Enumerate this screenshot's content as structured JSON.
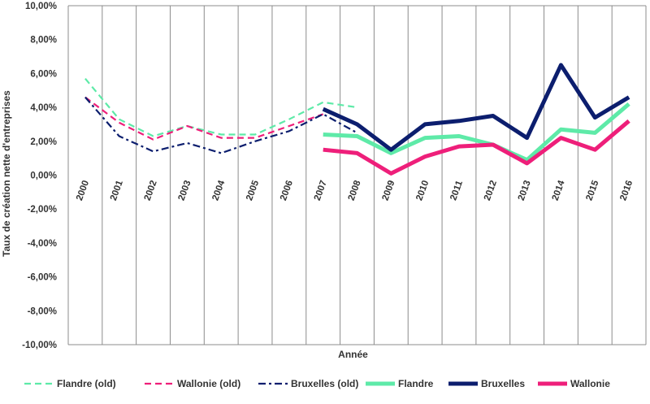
{
  "chart_data": {
    "type": "line",
    "xlabel": "Année",
    "ylabel": "Taux de création nette d'entreprises",
    "ylim": [
      -10,
      10
    ],
    "yticks": [
      "10,00%",
      "8,00%",
      "6,00%",
      "4,00%",
      "2,00%",
      "0,00%",
      "-2,00%",
      "-4,00%",
      "-6,00%",
      "-8,00%",
      "-10,00%"
    ],
    "categories": [
      "2000",
      "2001",
      "2002",
      "2003",
      "2004",
      "2005",
      "2006",
      "2007",
      "2008",
      "2009",
      "2010",
      "2011",
      "2012",
      "2013",
      "2014",
      "2015",
      "2016"
    ],
    "grid": "vertical",
    "legend_position": "bottom",
    "series": [
      {
        "name": "Flandre (old)",
        "color": "#5eeaa8",
        "style": "dashed",
        "width": "thin",
        "values": [
          5.7,
          3.3,
          2.3,
          2.9,
          2.4,
          2.4,
          3.3,
          4.3,
          4.0,
          null,
          null,
          null,
          null,
          null,
          null,
          null,
          null
        ]
      },
      {
        "name": "Wallonie (old)",
        "color": "#ee1f7a",
        "style": "dashed",
        "width": "thin",
        "values": [
          4.6,
          3.1,
          2.1,
          2.9,
          2.2,
          2.2,
          2.9,
          3.6,
          null,
          null,
          null,
          null,
          null,
          null,
          null,
          null,
          null
        ]
      },
      {
        "name": "Bruxelles (old)",
        "color": "#0c1e6e",
        "style": "dashdot",
        "width": "thin",
        "values": [
          4.6,
          2.3,
          1.4,
          1.9,
          1.3,
          2.0,
          2.6,
          3.6,
          2.5,
          null,
          null,
          null,
          null,
          null,
          null,
          null,
          null
        ]
      },
      {
        "name": "Flandre",
        "color": "#5eeaa8",
        "style": "solid",
        "width": "thick",
        "values": [
          null,
          null,
          null,
          null,
          null,
          null,
          null,
          2.4,
          2.3,
          1.3,
          2.2,
          2.3,
          1.8,
          0.9,
          2.7,
          2.5,
          4.2
        ]
      },
      {
        "name": "Bruxelles",
        "color": "#0c1e6e",
        "style": "solid",
        "width": "thick",
        "values": [
          null,
          null,
          null,
          null,
          null,
          null,
          null,
          3.9,
          3.0,
          1.5,
          3.0,
          3.2,
          3.5,
          2.2,
          6.5,
          3.4,
          4.6
        ]
      },
      {
        "name": "Wallonie",
        "color": "#ee1f7a",
        "style": "solid",
        "width": "thick",
        "values": [
          null,
          null,
          null,
          null,
          null,
          null,
          null,
          1.5,
          1.3,
          0.1,
          1.1,
          1.7,
          1.8,
          0.7,
          2.2,
          1.5,
          3.2
        ]
      }
    ]
  }
}
